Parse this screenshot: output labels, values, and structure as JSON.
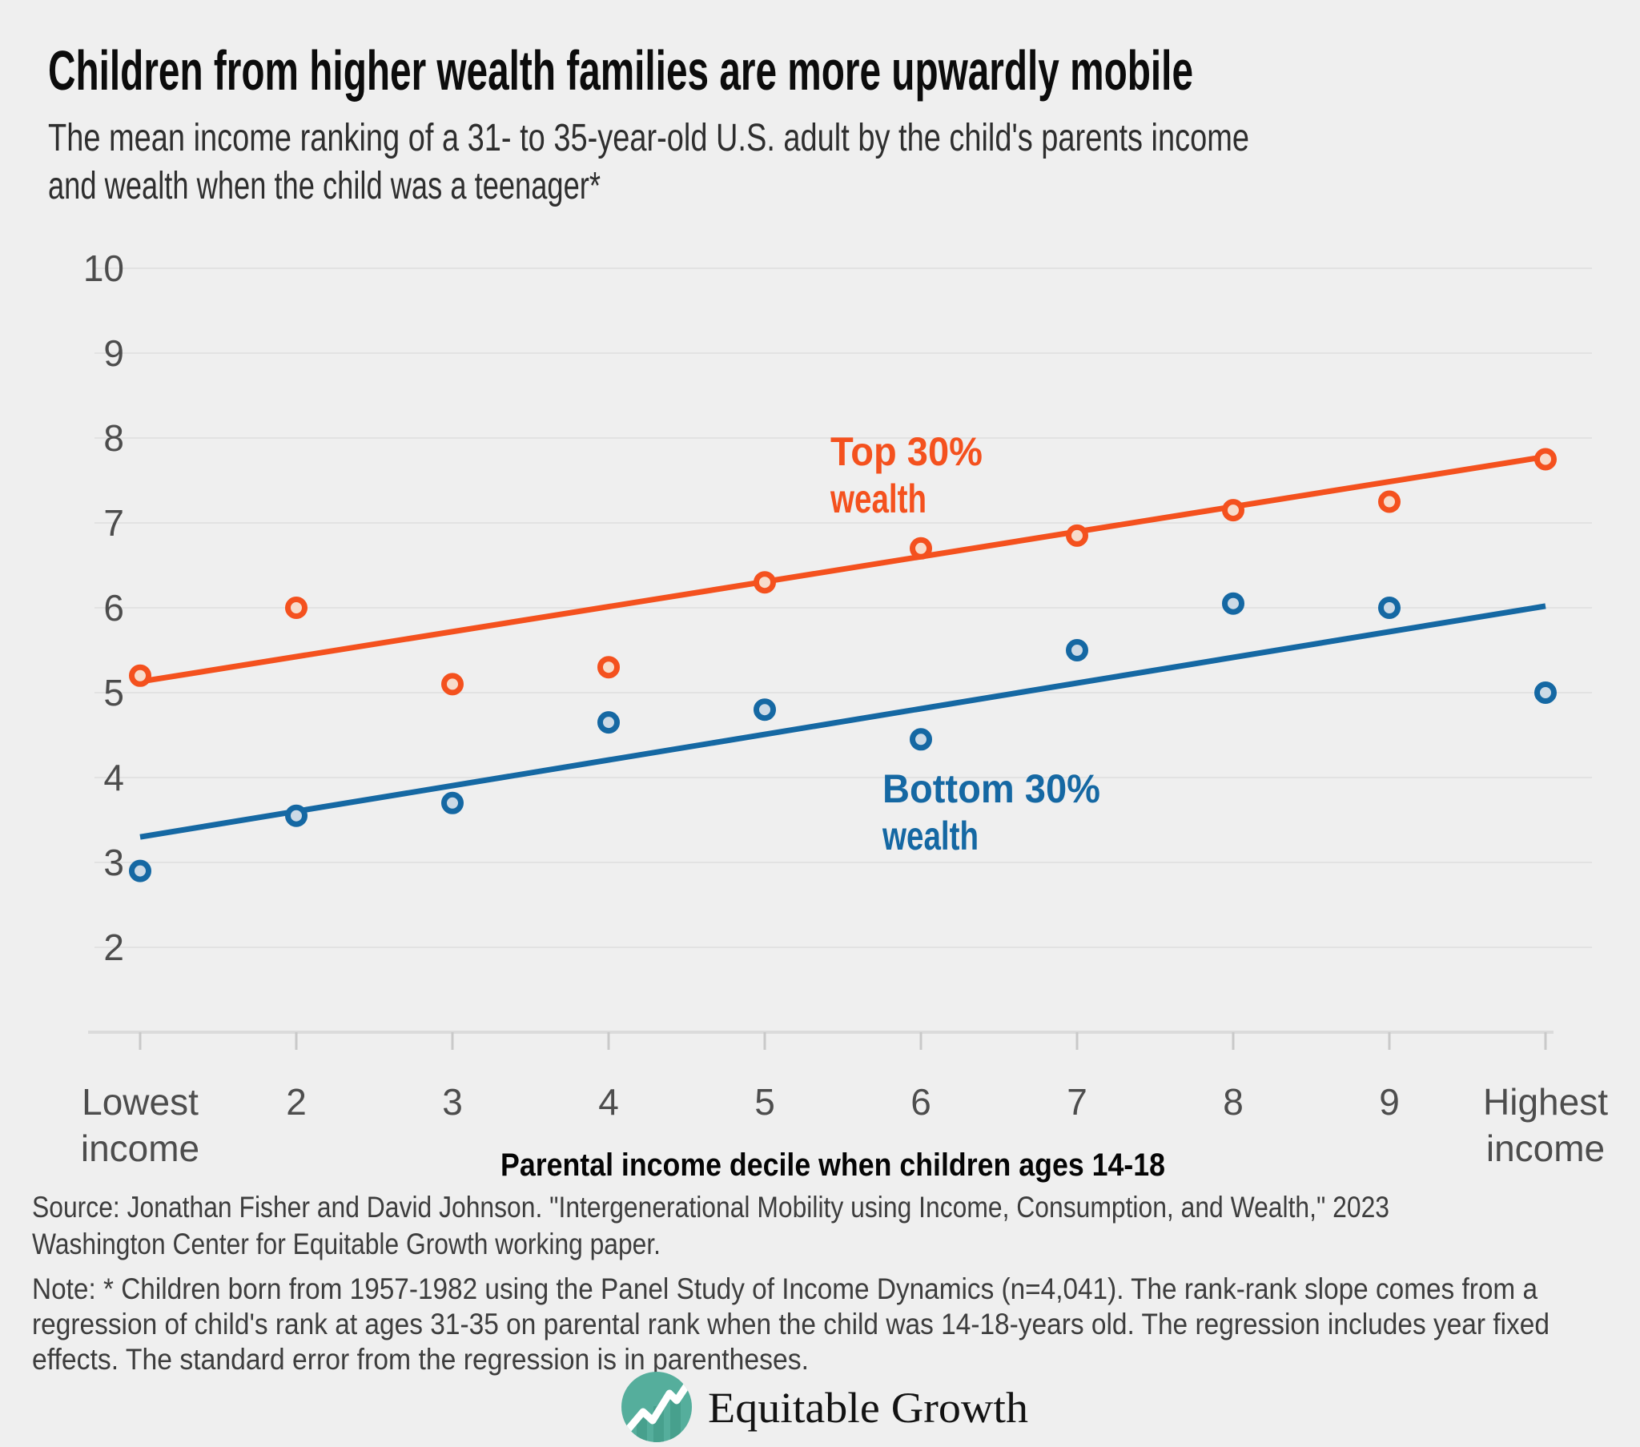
{
  "header": {
    "title": "Children from higher wealth families are more upwardly mobile",
    "subtitle_lines": [
      "The mean income ranking of a 31- to 35-year-old U.S. adult by the child's parents income",
      "and wealth when the child was a teenager*"
    ]
  },
  "chart_data": {
    "type": "scatter",
    "title": "Children from higher wealth families are more upwardly mobile",
    "xlabel": "Parental income decile when children ages 14-18",
    "ylabel": "",
    "categories": [
      1,
      2,
      3,
      4,
      5,
      6,
      7,
      8,
      9,
      10
    ],
    "x_tick_labels": [
      "Lowest income",
      "2",
      "3",
      "4",
      "5",
      "6",
      "7",
      "8",
      "9",
      "Highest income"
    ],
    "y_ticks": [
      10,
      9,
      8,
      7,
      6,
      5,
      4,
      3,
      2
    ],
    "ylim": [
      1,
      10
    ],
    "grid": true,
    "legend_position": "inline-annotations",
    "series": [
      {
        "name": "Top 30% wealth",
        "color": "#f4511e",
        "marker_fill": "#f7dccb",
        "values": [
          5.2,
          6.0,
          5.1,
          5.3,
          6.3,
          6.7,
          6.85,
          7.15,
          7.25,
          7.75
        ],
        "trend": {
          "start_value": 5.13,
          "end_value": 7.78
        }
      },
      {
        "name": "Bottom 30% wealth",
        "color": "#1568a3",
        "marker_fill": "#ccdae6",
        "values": [
          2.9,
          3.55,
          3.7,
          4.65,
          4.8,
          4.45,
          5.5,
          6.05,
          6.0,
          5.0
        ],
        "trend": {
          "start_value": 3.3,
          "end_value": 6.02
        }
      }
    ]
  },
  "annotations": {
    "top_series_line1": "Top 30%",
    "top_series_line2": "wealth",
    "bottom_series_line1": "Bottom 30%",
    "bottom_series_line2": "wealth"
  },
  "axis": {
    "x_title": "Parental income decile when children ages 14-18"
  },
  "footer": {
    "source_lines": [
      "Source: Jonathan Fisher and David Johnson. \"Intergenerational Mobility using Income, Consumption, and Wealth,\" 2023",
      "Washington Center for Equitable Growth working paper."
    ],
    "note_lines": [
      "Note: * Children born from 1957-1982 using the Panel Study of Income Dynamics (n=4,041). The rank-rank slope comes from a",
      "regression of child's rank at ages 31-35 on parental rank when the child was 14-18-years old. The regression includes year fixed",
      "effects. The standard error from the regression is in parentheses."
    ],
    "logo_text": "Equitable Growth",
    "logo_color": "#55ae9c"
  }
}
